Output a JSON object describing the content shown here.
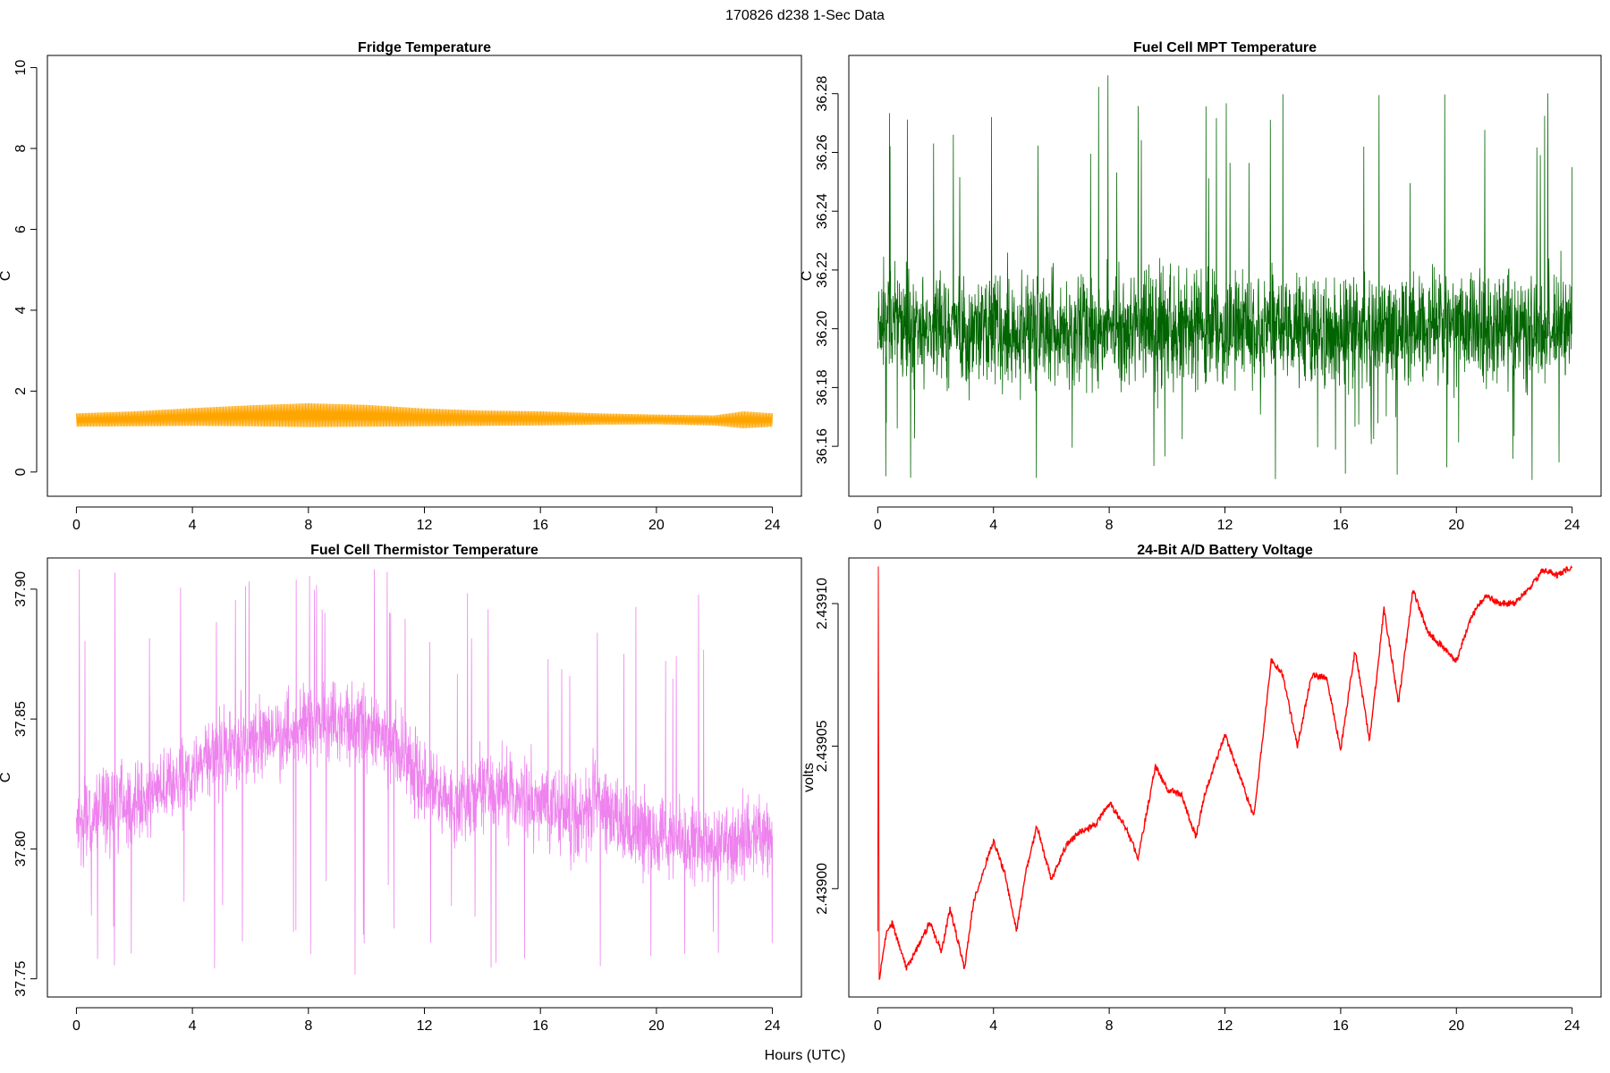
{
  "figure": {
    "suptitle": "170826   d238   1-Sec Data",
    "xlabel": "Hours (UTC)"
  },
  "chart_data": [
    {
      "id": "fridge",
      "type": "line",
      "title": "Fridge Temperature",
      "ylabel": "C",
      "xlabel": "",
      "color": "#FFA500",
      "render": "band",
      "xlim": [
        -1,
        25
      ],
      "ylim": [
        -0.6,
        10.3
      ],
      "xticks": [
        0,
        4,
        8,
        12,
        16,
        20,
        24
      ],
      "yticks": [
        0,
        2,
        4,
        6,
        8,
        10
      ],
      "ytick_labels": [
        "0",
        "2",
        "4",
        "6",
        "8",
        "10"
      ],
      "x": [
        0,
        2,
        4,
        6,
        8,
        10,
        12,
        14,
        16,
        18,
        20,
        22,
        23,
        24
      ],
      "low": [
        1.12,
        1.13,
        1.14,
        1.13,
        1.11,
        1.12,
        1.13,
        1.14,
        1.15,
        1.17,
        1.18,
        1.15,
        1.08,
        1.12
      ],
      "high": [
        1.45,
        1.5,
        1.58,
        1.65,
        1.7,
        1.66,
        1.57,
        1.52,
        1.5,
        1.45,
        1.42,
        1.4,
        1.5,
        1.45
      ]
    },
    {
      "id": "mpt",
      "type": "line",
      "title": "Fuel Cell MPT Temperature",
      "ylabel": "C",
      "xlabel": "",
      "color": "#006400",
      "render": "noise",
      "xlim": [
        -1,
        25
      ],
      "ylim": [
        36.143,
        36.293
      ],
      "xticks": [
        0,
        4,
        8,
        12,
        16,
        20,
        24
      ],
      "yticks": [
        36.16,
        36.18,
        36.2,
        36.22,
        36.24,
        36.26,
        36.28
      ],
      "ytick_labels": [
        "36.16",
        "36.18",
        "36.20",
        "36.22",
        "36.24",
        "36.26",
        "36.28"
      ],
      "x": [
        0,
        2,
        4,
        6,
        8,
        10,
        12,
        14,
        16,
        18,
        20,
        22,
        24
      ],
      "mean": [
        36.203,
        36.201,
        36.2,
        36.2,
        36.2,
        36.2,
        36.199,
        36.199,
        36.199,
        36.2,
        36.2,
        36.2,
        36.2
      ],
      "dense_halfwidth": 0.024,
      "spike_low": 36.148,
      "spike_high": 36.289
    },
    {
      "id": "thermistor",
      "type": "line",
      "title": "Fuel Cell Thermistor Temperature",
      "ylabel": "C",
      "xlabel": "",
      "color": "#EE82EE",
      "render": "noise",
      "xlim": [
        -1,
        25
      ],
      "ylim": [
        37.743,
        37.912
      ],
      "xticks": [
        0,
        4,
        8,
        12,
        16,
        20,
        24
      ],
      "yticks": [
        37.75,
        37.8,
        37.85,
        37.9
      ],
      "ytick_labels": [
        "37.75",
        "37.80",
        "37.85",
        "37.90"
      ],
      "x": [
        0,
        1,
        2,
        3,
        4,
        5,
        6,
        7,
        8,
        9,
        10,
        11,
        12,
        13,
        14,
        15,
        16,
        17,
        18,
        19,
        20,
        21,
        22,
        23,
        24
      ],
      "mean": [
        37.81,
        37.815,
        37.82,
        37.822,
        37.83,
        37.838,
        37.842,
        37.843,
        37.848,
        37.85,
        37.848,
        37.84,
        37.825,
        37.815,
        37.825,
        37.82,
        37.818,
        37.812,
        37.818,
        37.808,
        37.805,
        37.803,
        37.8,
        37.802,
        37.805
      ],
      "dense_halfwidth": 0.02,
      "spike_low": 37.748,
      "spike_high": 37.909
    },
    {
      "id": "battery",
      "type": "line",
      "title": "24-Bit A/D Battery Voltage",
      "ylabel": "volts",
      "xlabel": "",
      "color": "#FF0000",
      "render": "line",
      "xlim": [
        -1,
        25
      ],
      "ylim": [
        2.438962,
        2.439116
      ],
      "xticks": [
        0,
        4,
        8,
        12,
        16,
        20,
        24
      ],
      "yticks": [
        2.439,
        2.43905,
        2.4391
      ],
      "ytick_labels": [
        "2.43900",
        "2.43905",
        "2.43910"
      ],
      "x": [
        0,
        0.02,
        0.05,
        0.3,
        0.5,
        1.0,
        1.5,
        1.8,
        2.2,
        2.5,
        3.0,
        3.3,
        4.0,
        4.4,
        4.8,
        5.1,
        5.5,
        6.0,
        6.5,
        7.0,
        7.5,
        8.0,
        8.5,
        9.0,
        9.6,
        10.0,
        10.5,
        11.0,
        11.3,
        12.0,
        12.5,
        13.0,
        13.6,
        14.0,
        14.5,
        15.0,
        15.5,
        16.0,
        16.5,
        17.0,
        17.5,
        18.0,
        18.5,
        19.0,
        19.5,
        20.0,
        20.5,
        21.0,
        21.5,
        22.0,
        22.5,
        23.0,
        23.5,
        24.0
      ],
      "y": [
        2.438985,
        2.439113,
        2.438968,
        2.438985,
        2.438988,
        2.438972,
        2.438982,
        2.438988,
        2.438978,
        2.438993,
        2.438972,
        2.438995,
        2.439017,
        2.439005,
        2.438985,
        2.439005,
        2.439022,
        2.439003,
        2.439015,
        2.43902,
        2.439022,
        2.43903,
        2.439023,
        2.439011,
        2.439043,
        2.439035,
        2.439033,
        2.439018,
        2.439033,
        2.439054,
        2.43904,
        2.439025,
        2.43908,
        2.439075,
        2.43905,
        2.439075,
        2.439074,
        2.439049,
        2.439084,
        2.439052,
        2.439098,
        2.439065,
        2.439105,
        2.43909,
        2.439085,
        2.43908,
        2.439095,
        2.439103,
        2.4391,
        2.4391,
        2.439105,
        2.439112,
        2.43911,
        2.439113
      ]
    }
  ]
}
